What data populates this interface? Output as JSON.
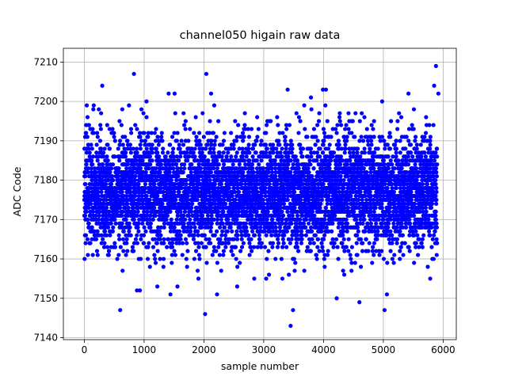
{
  "chart_data": {
    "type": "scatter",
    "title": "channel050 higain raw data",
    "xlabel": "sample number",
    "ylabel": "ADC Code",
    "xlim": [
      -350,
      6220
    ],
    "ylim": [
      7139.5,
      7213.5
    ],
    "xticks": [
      0,
      1000,
      2000,
      3000,
      4000,
      5000,
      6000
    ],
    "yticks": [
      7140,
      7150,
      7160,
      7170,
      7180,
      7190,
      7200,
      7210
    ],
    "grid": true,
    "marker_color": "#0000ff",
    "series": [
      {
        "n_points": 5900,
        "x_range": [
          0,
          5900
        ],
        "dense_band": [
          7169,
          7185
        ],
        "typical_range": [
          7155,
          7198
        ],
        "outliers": [
          {
            "x": 300,
            "y": 7204
          },
          {
            "x": 600,
            "y": 7147
          },
          {
            "x": 830,
            "y": 7207
          },
          {
            "x": 880,
            "y": 7152
          },
          {
            "x": 930,
            "y": 7152
          },
          {
            "x": 1040,
            "y": 7200
          },
          {
            "x": 1410,
            "y": 7202
          },
          {
            "x": 1440,
            "y": 7151
          },
          {
            "x": 1510,
            "y": 7202
          },
          {
            "x": 2020,
            "y": 7146
          },
          {
            "x": 2040,
            "y": 7207
          },
          {
            "x": 2120,
            "y": 7202
          },
          {
            "x": 2220,
            "y": 7151
          },
          {
            "x": 3400,
            "y": 7203
          },
          {
            "x": 3450,
            "y": 7143
          },
          {
            "x": 3490,
            "y": 7147
          },
          {
            "x": 3790,
            "y": 7201
          },
          {
            "x": 3990,
            "y": 7203
          },
          {
            "x": 4040,
            "y": 7203
          },
          {
            "x": 4220,
            "y": 7150
          },
          {
            "x": 4600,
            "y": 7149
          },
          {
            "x": 4980,
            "y": 7200
          },
          {
            "x": 5020,
            "y": 7147
          },
          {
            "x": 5060,
            "y": 7151
          },
          {
            "x": 5420,
            "y": 7202
          },
          {
            "x": 5850,
            "y": 7204
          },
          {
            "x": 5880,
            "y": 7209
          },
          {
            "x": 5920,
            "y": 7202
          }
        ]
      }
    ]
  }
}
